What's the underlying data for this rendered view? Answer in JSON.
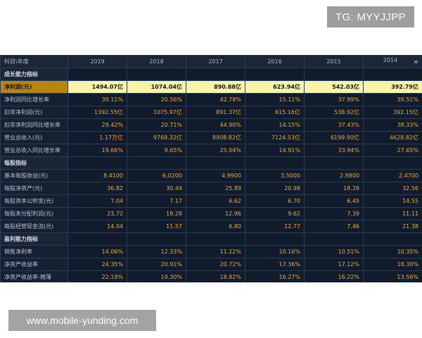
{
  "watermark_top": "TG: MYYJJPP",
  "watermark_bottom": "www.mobile-yunding.com",
  "table": {
    "header_label": "科目\\年度",
    "years": [
      "2019",
      "2018",
      "2017",
      "2016",
      "2015",
      "2014"
    ],
    "next_icon": "»",
    "rows": [
      {
        "type": "section",
        "label": "成长能力指标"
      },
      {
        "type": "data",
        "highlight": true,
        "label": "净利润(元)",
        "values": [
          "1494.07亿",
          "1074.04亿",
          "890.88亿",
          "623.94亿",
          "542.03亿",
          "392.79亿"
        ]
      },
      {
        "type": "data",
        "label": "净利润同比增长率",
        "values": [
          "39.11%",
          "20.56%",
          "42.78%",
          "15.11%",
          "37.99%",
          "39.51%"
        ]
      },
      {
        "type": "data",
        "label": "扣非净利润(元)",
        "values": [
          "1392.55亿",
          "1075.97亿",
          "891.37亿",
          "615.16亿",
          "538.92亿",
          "392.15亿"
        ]
      },
      {
        "type": "data",
        "label": "扣非净利润同比增长率",
        "values": [
          "29.42%",
          "20.71%",
          "44.90%",
          "14.15%",
          "37.43%",
          "38.33%"
        ]
      },
      {
        "type": "data",
        "label": "营业总收入(元)",
        "values": [
          "1.17万亿",
          "9768.32亿",
          "8908.82亿",
          "7124.53亿",
          "6199.90亿",
          "4628.82亿"
        ]
      },
      {
        "type": "data",
        "label": "营业总收入同比增长率",
        "values": [
          "19.66%",
          "9.65%",
          "25.04%",
          "14.91%",
          "33.94%",
          "27.65%"
        ]
      },
      {
        "type": "section",
        "label": "每股指标"
      },
      {
        "type": "data",
        "label": "基本每股收益(元)",
        "values": [
          "8.4100",
          "6.0200",
          "4.9900",
          "3.5000",
          "2.9800",
          "2.4700"
        ]
      },
      {
        "type": "data",
        "label": "每股净资产(元)",
        "values": [
          "36.82",
          "30.44",
          "25.89",
          "20.98",
          "18.28",
          "32.56"
        ]
      },
      {
        "type": "data",
        "label": "每股资本公积金(元)",
        "values": [
          "7.04",
          "7.17",
          "6.62",
          "6.70",
          "6.45",
          "14.55"
        ]
      },
      {
        "type": "data",
        "label": "每股未分配利润(元)",
        "values": [
          "23.72",
          "18.28",
          "12.96",
          "9.62",
          "7.39",
          "11.11"
        ]
      },
      {
        "type": "data",
        "label": "每股经营现金流(元)",
        "values": [
          "14.04",
          "11.57",
          "6.80",
          "12.77",
          "7.46",
          "21.38"
        ]
      },
      {
        "type": "section",
        "label": "盈利能力指标"
      },
      {
        "type": "data",
        "label": "销售净利率",
        "values": [
          "14.06%",
          "12.33%",
          "11.22%",
          "10.16%",
          "10.51%",
          "10.35%"
        ]
      },
      {
        "type": "data",
        "label": "净资产收益率",
        "values": [
          "24.35%",
          "20.91%",
          "20.72%",
          "17.36%",
          "17.12%",
          "18.30%"
        ]
      },
      {
        "type": "data",
        "label": "净资产收益率-摊薄",
        "values": [
          "22.19%",
          "19.30%",
          "18.82%",
          "16.27%",
          "16.22%",
          "13.56%"
        ]
      }
    ]
  }
}
